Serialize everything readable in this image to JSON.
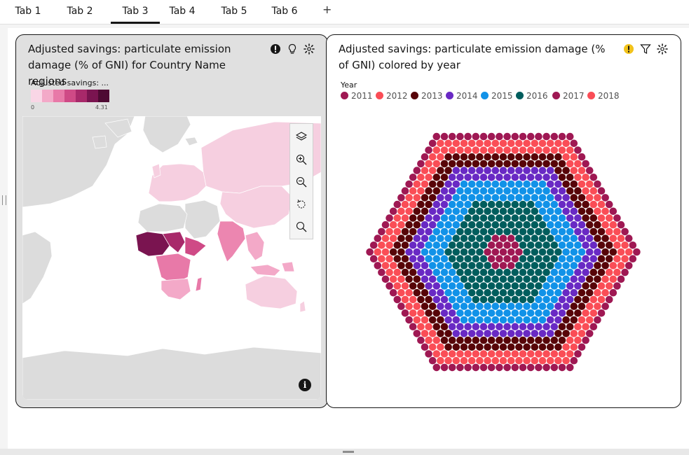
{
  "tabs": [
    {
      "label": "Tab 1",
      "active": false
    },
    {
      "label": "Tab 2",
      "active": false
    },
    {
      "label": "Tab 3",
      "active": true
    },
    {
      "label": "Tab 4",
      "active": false
    },
    {
      "label": "Tab 5",
      "active": false
    },
    {
      "label": "Tab 6",
      "active": false
    }
  ],
  "add_tab_label": "+",
  "map_card": {
    "title": "Adjusted savings: particulate emission damage (% of GNI)  for Country Name regions",
    "legend_title": "Adjusted savings: ...",
    "scale_min": "0",
    "scale_max": "4.31",
    "scale_colors": [
      "#f9d6e6",
      "#f3a9c8",
      "#e879a8",
      "#cf4a86",
      "#a8296a",
      "#7a1450",
      "#4e0a33"
    ],
    "icons": [
      "alert-icon",
      "lightbulb-icon",
      "settings-icon"
    ],
    "map_tools": [
      "layers-icon",
      "zoom-in-icon",
      "zoom-out-icon",
      "reset-icon",
      "search-icon"
    ],
    "info_icon": "i"
  },
  "bubble_card": {
    "title": "Adjusted savings: particulate emission damage (% of GNI)  colored by year",
    "legend_title": "Year",
    "icons": [
      "warning-icon",
      "filter-icon",
      "settings-icon"
    ],
    "legend": [
      {
        "label": "2011",
        "color": "#9f1853"
      },
      {
        "label": "2012",
        "color": "#fa4d56"
      },
      {
        "label": "2013",
        "color": "#570408"
      },
      {
        "label": "2014",
        "color": "#6929c4"
      },
      {
        "label": "2015",
        "color": "#1192e8"
      },
      {
        "label": "2016",
        "color": "#005d5d"
      },
      {
        "label": "2017",
        "color": "#9f1853"
      },
      {
        "label": "2018",
        "color": "#fa4d56"
      }
    ]
  }
}
